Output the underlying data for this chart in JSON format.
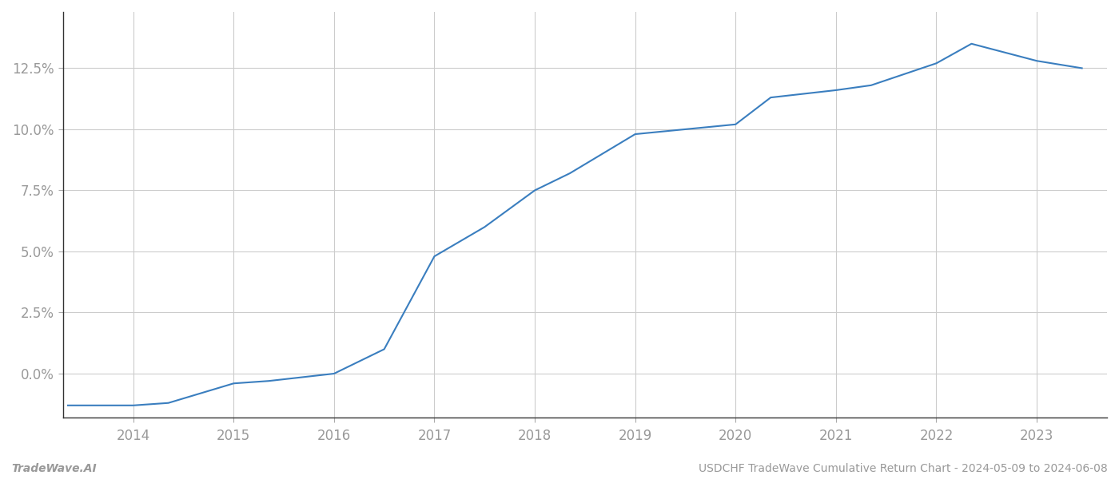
{
  "x_values": [
    2013.35,
    2014.0,
    2014.35,
    2015.0,
    2015.35,
    2016.0,
    2016.35,
    2016.5,
    2017.0,
    2017.5,
    2018.0,
    2018.35,
    2019.0,
    2019.5,
    2020.0,
    2020.35,
    2021.0,
    2021.35,
    2022.0,
    2022.35,
    2023.0,
    2023.45
  ],
  "y_values": [
    -0.013,
    -0.013,
    -0.012,
    -0.004,
    -0.003,
    0.0,
    0.007,
    0.01,
    0.048,
    0.06,
    0.075,
    0.082,
    0.098,
    0.1,
    0.102,
    0.113,
    0.116,
    0.118,
    0.127,
    0.135,
    0.128,
    0.125
  ],
  "line_color": "#3a7ebf",
  "line_width": 1.5,
  "background_color": "#ffffff",
  "grid_color": "#cccccc",
  "xlabel": "",
  "ylabel": "",
  "xlim": [
    2013.3,
    2023.7
  ],
  "ylim": [
    -0.018,
    0.148
  ],
  "xtick_labels": [
    "2014",
    "2015",
    "2016",
    "2017",
    "2018",
    "2019",
    "2020",
    "2021",
    "2022",
    "2023"
  ],
  "xtick_positions": [
    2014,
    2015,
    2016,
    2017,
    2018,
    2019,
    2020,
    2021,
    2022,
    2023
  ],
  "ytick_values": [
    0.0,
    0.025,
    0.05,
    0.075,
    0.1,
    0.125
  ],
  "footer_left": "TradeWave.AI",
  "footer_right": "USDCHF TradeWave Cumulative Return Chart - 2024-05-09 to 2024-06-08",
  "tick_label_color": "#999999",
  "footer_color": "#999999",
  "tick_fontsize": 12,
  "footer_fontsize": 10,
  "spine_color": "#aaaaaa"
}
